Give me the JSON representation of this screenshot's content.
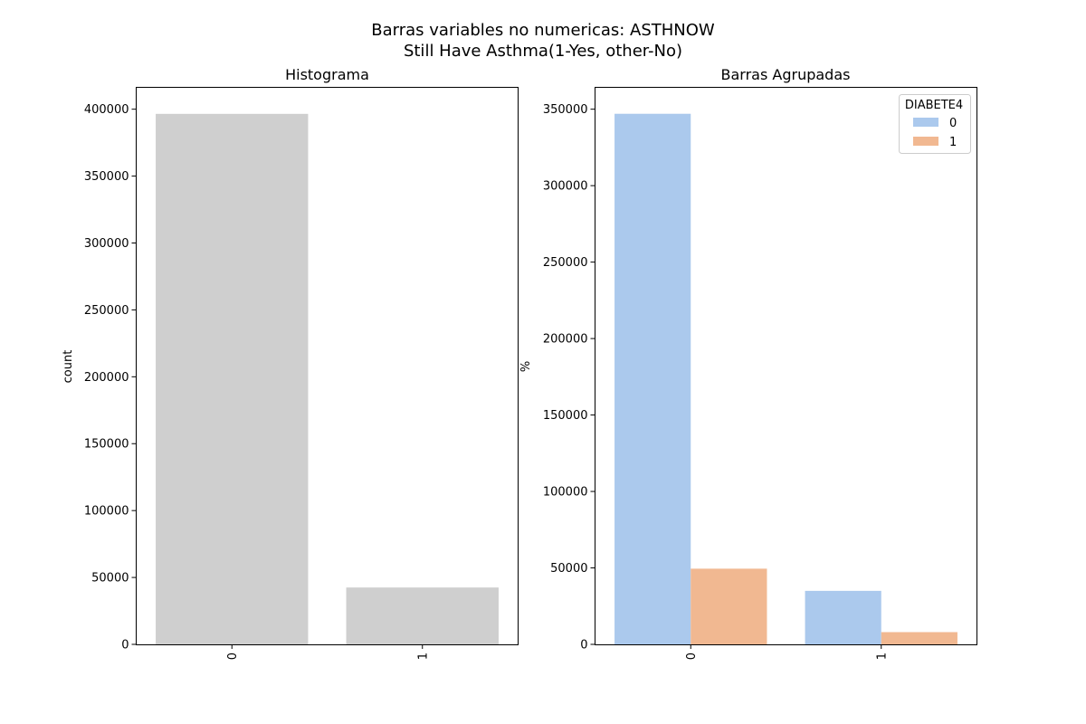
{
  "figure": {
    "title_line1": "Barras variables no numericas: ASTHNOW",
    "title_line2": "Still Have Asthma(1-Yes, other-No)"
  },
  "colors": {
    "histogram_bar": "#cfcfcf",
    "series_0": "#abc9ed",
    "series_1": "#f1b891",
    "axis": "#000000"
  },
  "chart_data": [
    {
      "type": "bar",
      "title": "Histograma",
      "xlabel": "",
      "ylabel": "count",
      "categories": [
        "0",
        "1"
      ],
      "values": [
        396500,
        42500
      ],
      "ylim": [
        0,
        416000
      ],
      "yticks": [
        0,
        50000,
        100000,
        150000,
        200000,
        250000,
        300000,
        350000,
        400000
      ],
      "xtick_rotation": "vertical",
      "grid": false
    },
    {
      "type": "bar",
      "title": "Barras Agrupadas",
      "xlabel": "",
      "ylabel": "%",
      "categories": [
        "0",
        "1"
      ],
      "series": [
        {
          "name": "0",
          "values": [
            347000,
            35000
          ]
        },
        {
          "name": "1",
          "values": [
            49500,
            8000
          ]
        }
      ],
      "legend": {
        "title": "DIABETE4",
        "placement": "top-right"
      },
      "ylim": [
        0,
        364000
      ],
      "yticks": [
        0,
        50000,
        100000,
        150000,
        200000,
        250000,
        300000,
        350000
      ],
      "xtick_rotation": "vertical",
      "grid": false
    }
  ]
}
